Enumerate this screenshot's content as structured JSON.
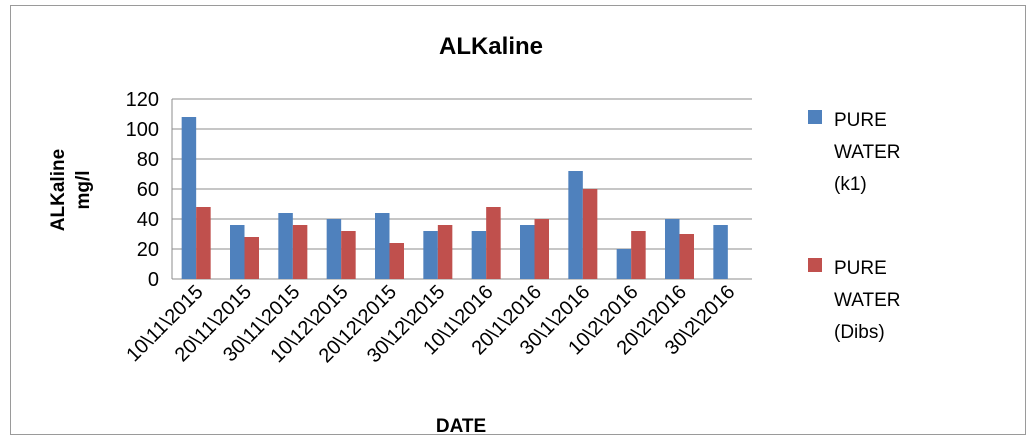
{
  "chart_data": {
    "type": "bar",
    "title": "ALKaline",
    "xlabel": "DATE",
    "ylabel_lines": [
      "ALKaline",
      "mg/l"
    ],
    "ylim": [
      0,
      120
    ],
    "yticks": [
      0,
      20,
      40,
      60,
      80,
      100,
      120
    ],
    "grid": true,
    "legend_position": "right",
    "categories": [
      "10\\11\\2015",
      "20\\11\\2015",
      "30\\11\\2015",
      "10\\12\\2015",
      "20\\12\\2015",
      "30\\12\\2015",
      "10\\1\\2016",
      "20\\1\\2016",
      "30\\1\\2016",
      "10\\2\\2016",
      "20\\2\\2016",
      "30\\2\\2016"
    ],
    "series": [
      {
        "name_lines": [
          "PURE",
          "WATER",
          "(k1)"
        ],
        "color": "#4F81BD",
        "values": [
          108,
          36,
          44,
          40,
          44,
          32,
          32,
          36,
          72,
          20,
          40,
          36
        ]
      },
      {
        "name_lines": [
          "PURE",
          "WATER",
          "(Dibs)"
        ],
        "color": "#C0504D",
        "values": [
          48,
          28,
          36,
          32,
          24,
          36,
          48,
          40,
          60,
          32,
          30,
          null
        ]
      }
    ]
  }
}
